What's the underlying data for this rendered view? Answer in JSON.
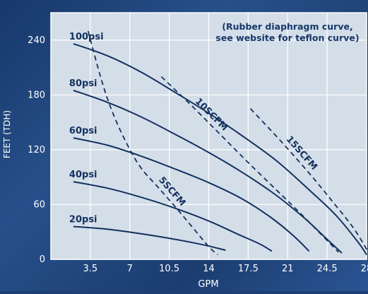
{
  "chart_data": {
    "type": "line",
    "title": "",
    "xlabel": "GPM",
    "ylabel": "FEET (TDH)",
    "xlim": [
      0,
      28
    ],
    "ylim": [
      0,
      270
    ],
    "x_ticks": [
      3.5,
      7,
      10.5,
      14,
      17.5,
      21,
      24.5,
      28
    ],
    "y_ticks": [
      0,
      60,
      120,
      180,
      240
    ],
    "grid": true,
    "annotation": [
      "(Rubber diaphragm curve,",
      "see website for teflon curve)"
    ],
    "pressure_curves": [
      {
        "name": "100psi",
        "points": [
          [
            2,
            236
          ],
          [
            5,
            223
          ],
          [
            8,
            205
          ],
          [
            11,
            183
          ],
          [
            14,
            160
          ],
          [
            17,
            135
          ],
          [
            20,
            108
          ],
          [
            23,
            75
          ],
          [
            25.3,
            48
          ],
          [
            27.3,
            18
          ],
          [
            28,
            5
          ]
        ]
      },
      {
        "name": "80psi",
        "points": [
          [
            2,
            185
          ],
          [
            5,
            172
          ],
          [
            8,
            156
          ],
          [
            11,
            137
          ],
          [
            14,
            117
          ],
          [
            17,
            95
          ],
          [
            20,
            70
          ],
          [
            22.5,
            45
          ],
          [
            24.5,
            22
          ],
          [
            25.8,
            7
          ]
        ]
      },
      {
        "name": "60psi",
        "points": [
          [
            2,
            133
          ],
          [
            5,
            125
          ],
          [
            8,
            113
          ],
          [
            11,
            99
          ],
          [
            14,
            84
          ],
          [
            17,
            66
          ],
          [
            19.5,
            46
          ],
          [
            21.5,
            26
          ],
          [
            22.9,
            9
          ]
        ]
      },
      {
        "name": "40psi",
        "points": [
          [
            2,
            85
          ],
          [
            5,
            78
          ],
          [
            8,
            68
          ],
          [
            11,
            56
          ],
          [
            14,
            42
          ],
          [
            16.5,
            28
          ],
          [
            18.5,
            17
          ],
          [
            19.6,
            9
          ]
        ]
      },
      {
        "name": "20psi",
        "points": [
          [
            2,
            36
          ],
          [
            5,
            33
          ],
          [
            8,
            28
          ],
          [
            11,
            22
          ],
          [
            13.5,
            16
          ],
          [
            15.5,
            10
          ]
        ]
      }
    ],
    "air_curves": [
      {
        "name": "5SCFM",
        "points": [
          [
            3.3,
            250
          ],
          [
            4.5,
            196
          ],
          [
            5.5,
            160
          ],
          [
            6.8,
            125
          ],
          [
            8,
            100
          ],
          [
            9.5,
            79
          ],
          [
            11,
            58
          ],
          [
            12.5,
            36
          ],
          [
            14,
            14
          ],
          [
            14.8,
            5
          ]
        ]
      },
      {
        "name": "10SCFM",
        "points": [
          [
            9.8,
            200
          ],
          [
            12.5,
            168
          ],
          [
            15,
            137
          ],
          [
            17.5,
            106
          ],
          [
            20,
            76
          ],
          [
            22,
            52
          ],
          [
            24,
            27
          ],
          [
            25.5,
            8
          ]
        ]
      },
      {
        "name": "15SCFM",
        "points": [
          [
            17.7,
            165
          ],
          [
            20.5,
            128
          ],
          [
            23,
            93
          ],
          [
            25,
            63
          ],
          [
            26.8,
            35
          ],
          [
            28.2,
            7
          ]
        ]
      }
    ]
  }
}
